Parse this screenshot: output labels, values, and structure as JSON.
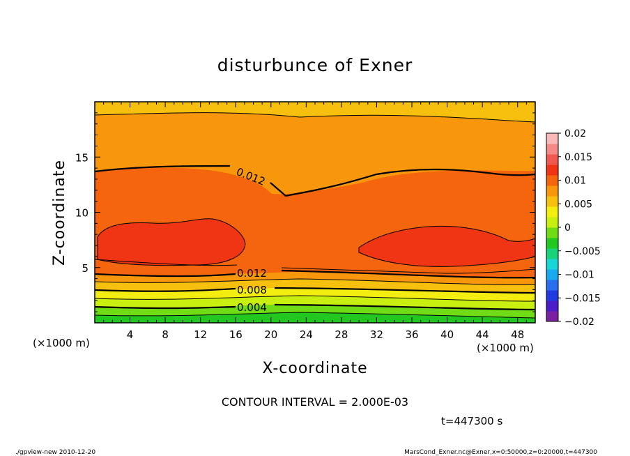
{
  "chart_data": {
    "type": "heatmap",
    "title": "disturbunce of Exner",
    "xlabel": "X-coordinate",
    "ylabel": "Z-coordinate",
    "x_unit": "(×1000 m)",
    "z_unit": "(×1000 m)",
    "xlim": [
      0,
      50
    ],
    "zlim": [
      0,
      20
    ],
    "x_ticks": [
      "4",
      "8",
      "12",
      "16",
      "20",
      "24",
      "28",
      "32",
      "36",
      "40",
      "44",
      "48"
    ],
    "z_ticks": [
      "5",
      "10",
      "15"
    ],
    "colorbar": {
      "range": [
        -0.02,
        0.02
      ],
      "tick_labels": [
        "0.02",
        "0.015",
        "0.01",
        "0.005",
        "0",
        "−0.005",
        "−0.01",
        "−0.015",
        "−0.02"
      ],
      "colors": [
        "#7a1fa2",
        "#4b1cc9",
        "#1f3ae0",
        "#2a6ef0",
        "#19a9f0",
        "#18d6d6",
        "#19d37a",
        "#22c81f",
        "#6fdc16",
        "#c8ef10",
        "#f4ee10",
        "#f8c00e",
        "#f8960c",
        "#f5650d",
        "#ef3513",
        "#f0594f",
        "#f48a87",
        "#f8b9b8"
      ]
    },
    "contour_labels": [
      "0.012",
      "0.012",
      "0.008",
      "0.004"
    ],
    "contour_interval_text": "CONTOUR INTERVAL = 2.000E-03",
    "time_text": "t=447300 s"
  },
  "footer": {
    "left": "./gpview-new   2010-12-20",
    "right": "MarsCond_Exner.nc@Exner,x=0:50000,z=0:20000,t=447300"
  }
}
